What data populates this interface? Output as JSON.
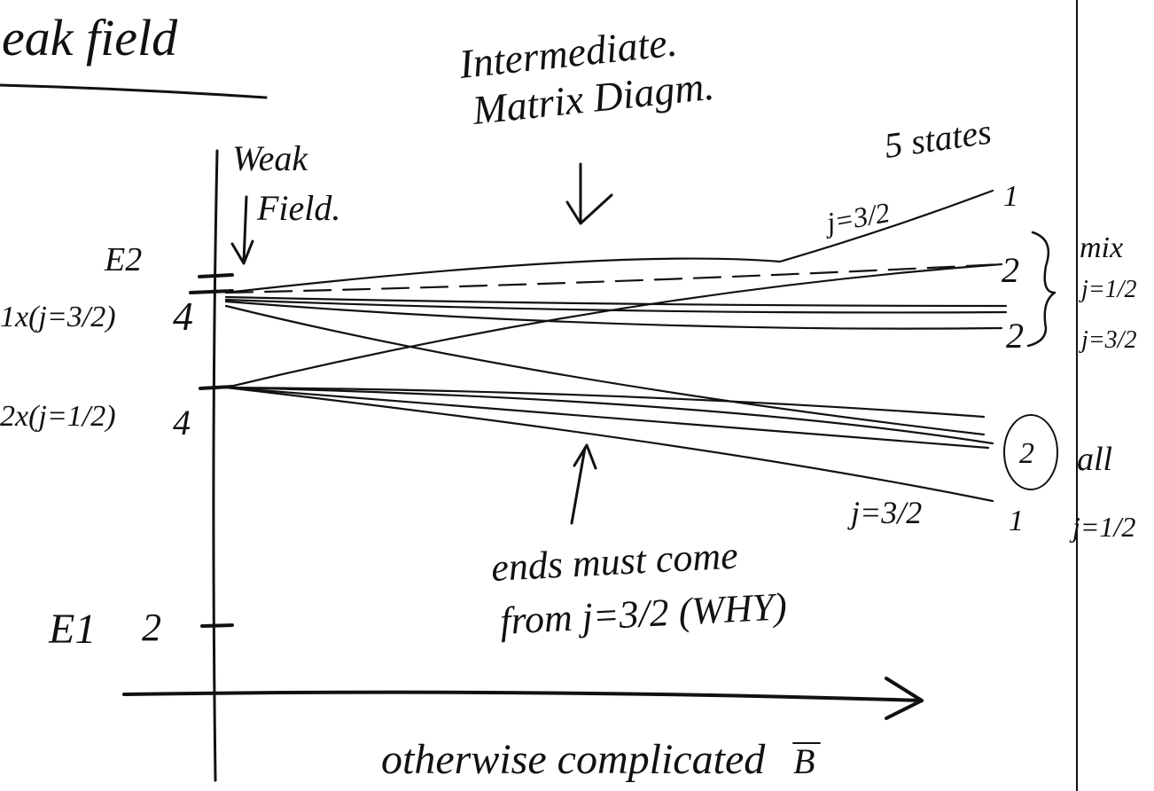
{
  "header": {
    "title": "eak field"
  },
  "top_note": {
    "line1": "Intermediate.",
    "line2": "Matrix Diagm."
  },
  "weak_field": {
    "line1": "Weak",
    "line2": "Field."
  },
  "right_labels": {
    "states": "5 states",
    "upper_j": "j=3/2",
    "count_top": "1",
    "count_mix_a": "2",
    "count_mix_b": "2",
    "mix": "mix",
    "mix_j_a": "j=1/2",
    "mix_j_b": "j=3/2",
    "circled": "2",
    "all": "all",
    "count_bottom": "1",
    "all_j": "j=1/2",
    "lower_j": "j=3/2"
  },
  "levels": {
    "e2": "E2",
    "e2_upper_label": "1x(j=3/2)",
    "e2_upper_count": "4",
    "e2_lower_label": "2x(j=1/2)",
    "e2_lower_count": "4",
    "e1": "E1",
    "e1_count": "2"
  },
  "bottom_note": {
    "line1": "ends must come",
    "line2": "from j=3/2 (WHY)"
  },
  "axis": {
    "caption": "otherwise complicated",
    "symbol": "B"
  }
}
